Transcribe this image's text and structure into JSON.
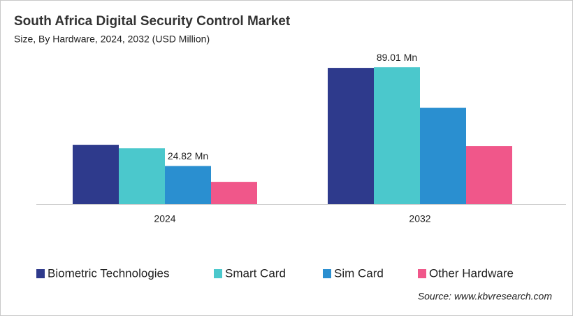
{
  "chart_data": {
    "type": "bar",
    "title": "South Africa Digital Security Control Market",
    "subtitle": "Size, By Hardware, 2024, 2032 (USD Million)",
    "categories": [
      "2024",
      "2032"
    ],
    "series": [
      {
        "name": "Biometric Technologies",
        "color": "#2e3a8c",
        "values": [
          38.6,
          88.6
        ]
      },
      {
        "name": "Smart Card",
        "color": "#4bc8cc",
        "values": [
          36.3,
          89.01
        ],
        "value_labels": [
          null,
          "89.01 Mn"
        ]
      },
      {
        "name": "Sim Card",
        "color": "#2a8fd0",
        "values": [
          24.82,
          62.7
        ],
        "value_labels": [
          "24.82 Mn",
          null
        ]
      },
      {
        "name": "Other Hardware",
        "color": "#f0578a",
        "values": [
          14.5,
          37.7
        ]
      }
    ],
    "source": "Source: www.kbvresearch.com"
  }
}
